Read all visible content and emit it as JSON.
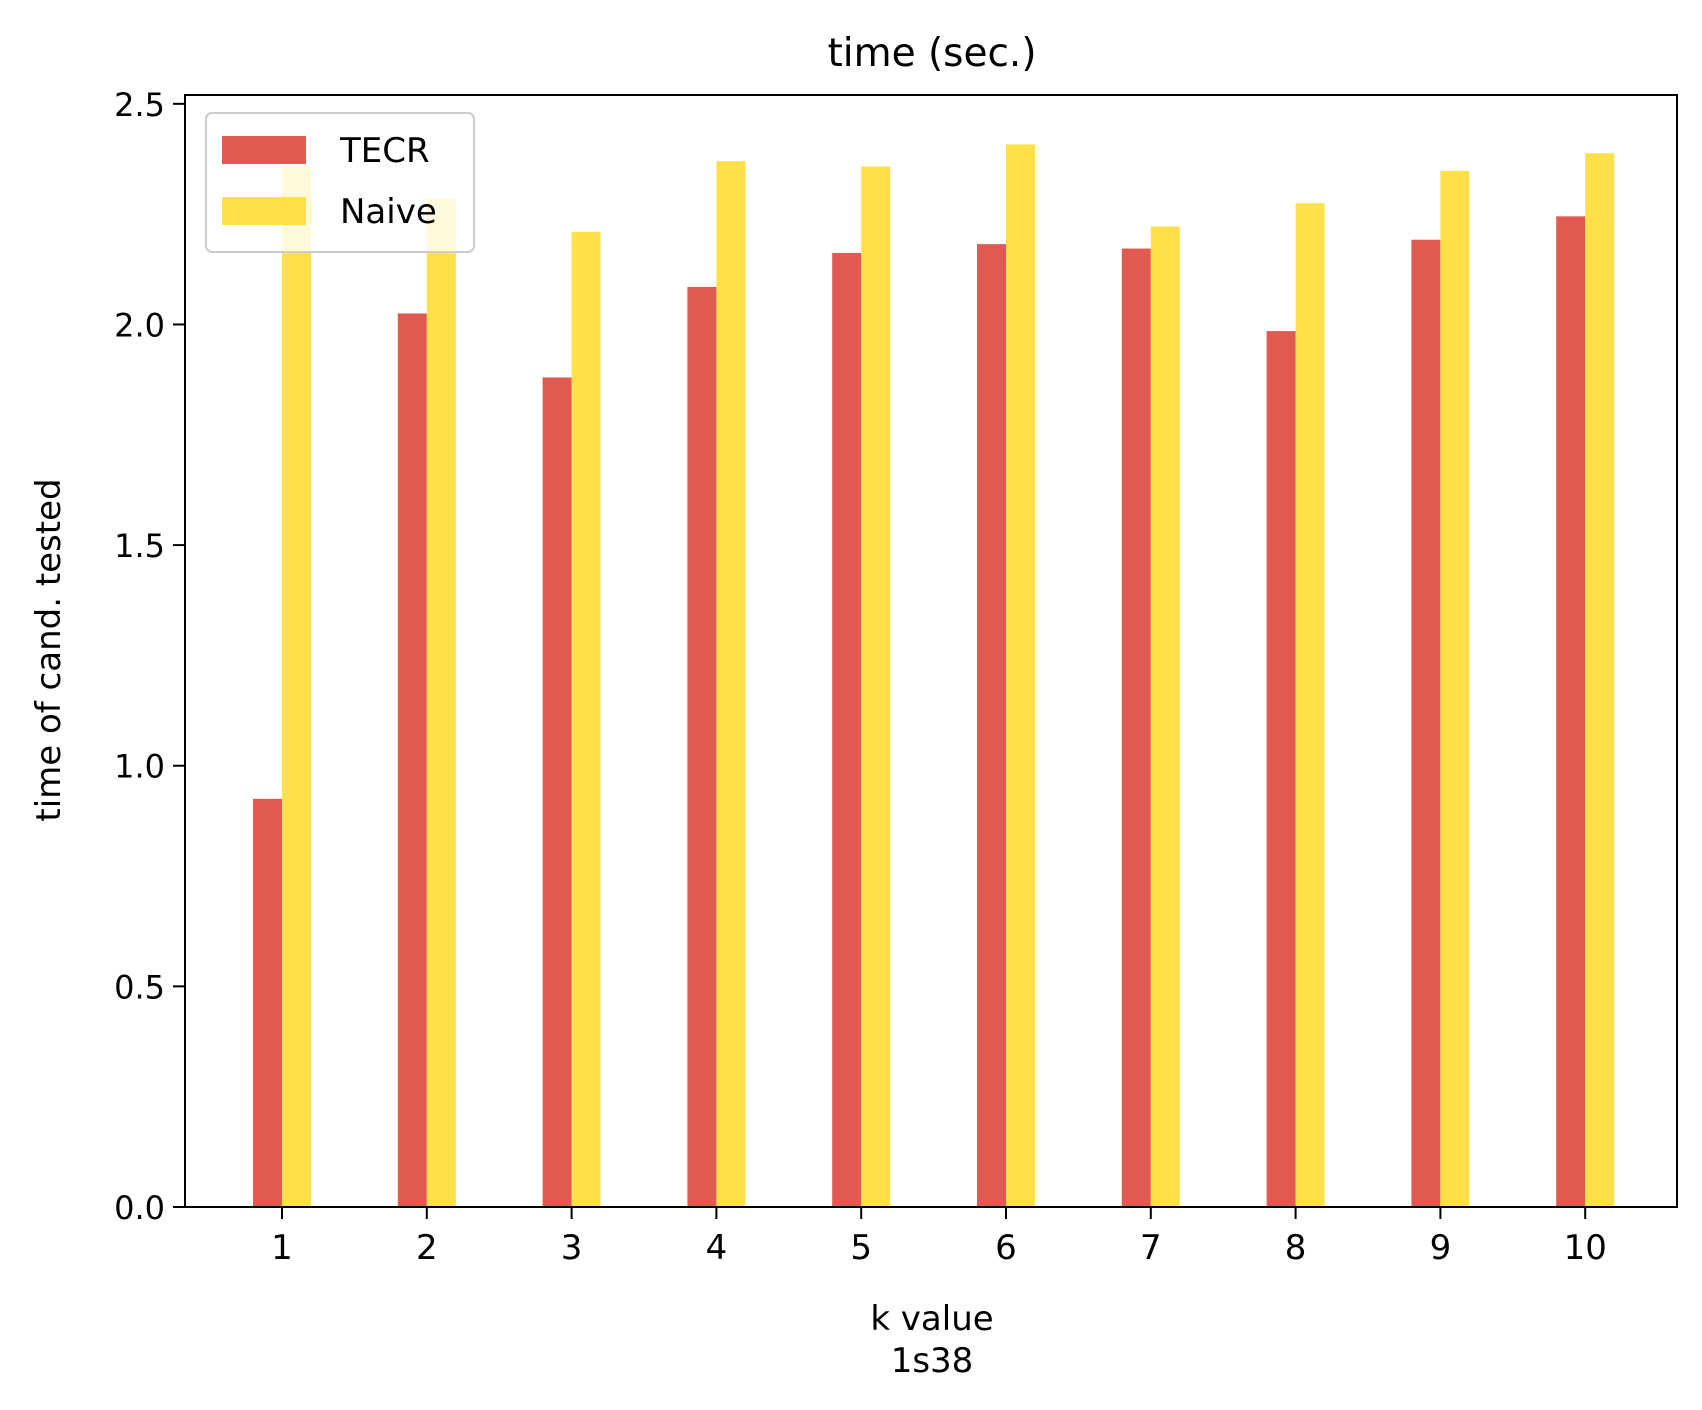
{
  "chart_data": {
    "type": "bar",
    "title": "time (sec.)",
    "xlabel": "k value",
    "xlabel_sub": "1s38",
    "ylabel": "time of cand. tested",
    "categories": [
      "1",
      "2",
      "3",
      "4",
      "5",
      "6",
      "7",
      "8",
      "9",
      "10"
    ],
    "series": [
      {
        "name": "TECR",
        "color": "#e05a52",
        "values": [
          0.925,
          2.025,
          1.88,
          2.085,
          2.162,
          2.182,
          2.172,
          1.985,
          2.192,
          2.245
        ]
      },
      {
        "name": "Naive",
        "color": "#fee04a",
        "values": [
          2.358,
          2.285,
          2.21,
          2.37,
          2.358,
          2.408,
          2.222,
          2.275,
          2.348,
          2.388
        ]
      }
    ],
    "ylim": [
      0,
      2.52
    ],
    "yticks": [
      "0.0",
      "0.5",
      "1.0",
      "1.5",
      "2.0",
      "2.5"
    ],
    "grid": false,
    "legend_position": "top-left"
  }
}
